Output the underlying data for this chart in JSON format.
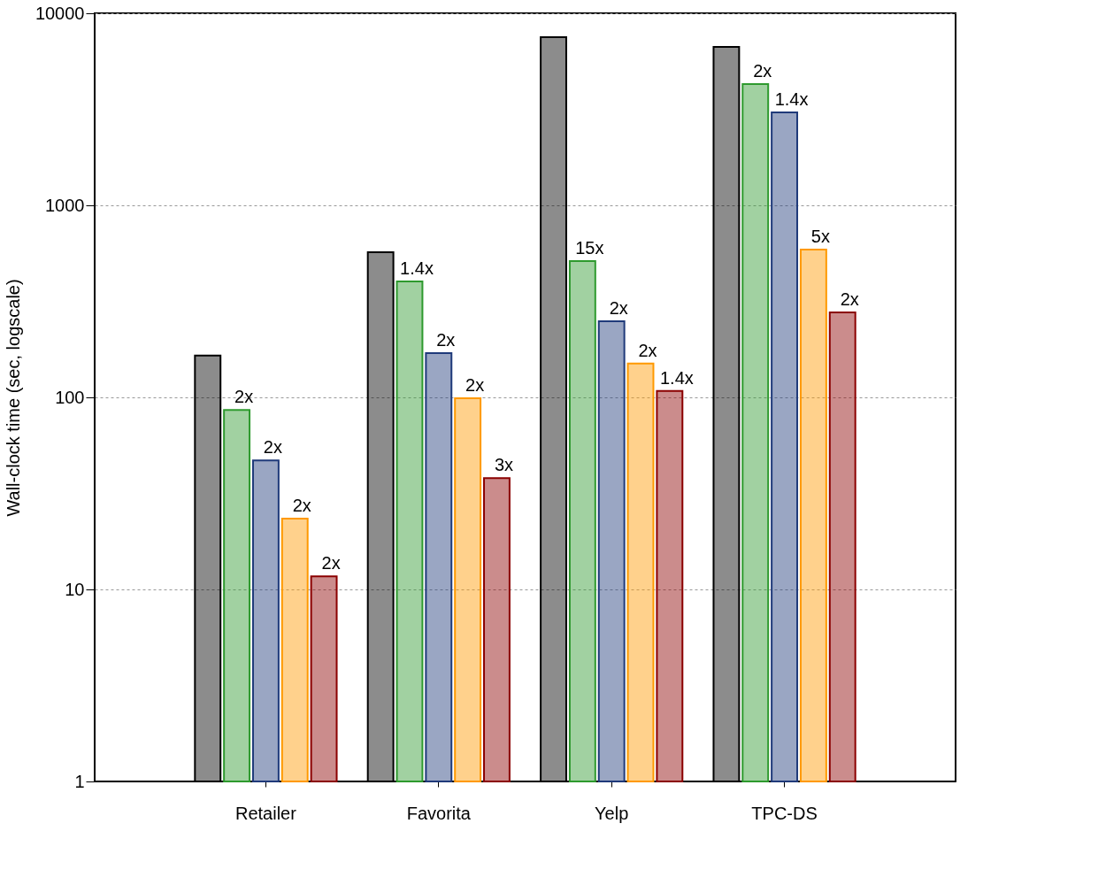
{
  "chart_data": {
    "type": "bar",
    "ylabel": "Wall-clock time (sec, logscale)",
    "categories": [
      "Retailer",
      "Favorita",
      "Yelp",
      "TPC-DS"
    ],
    "series": [
      {
        "color": "#000000",
        "values": [
          165,
          570,
          7510,
          6680
        ]
      },
      {
        "color": "#2e9a2e",
        "values": [
          86,
          402,
          512,
          4280
        ]
      },
      {
        "color": "#1f3a7a",
        "values": [
          47,
          170,
          249,
          3050
        ]
      },
      {
        "color": "#ff9900",
        "values": [
          23.4,
          99,
          150,
          589
        ]
      },
      {
        "color": "#8b0000",
        "values": [
          11.7,
          38,
          108,
          277
        ]
      }
    ],
    "annotations": [
      "2x",
      "2x",
      "2x",
      "2x",
      "1.4x",
      "2x",
      "2x",
      "3x",
      "15x",
      "2x",
      "2x",
      "1.4x",
      "2x",
      "1.4x",
      "5x",
      "2x"
    ],
    "log": true,
    "ylim": [
      1,
      10000
    ],
    "yticks": [
      1,
      10,
      100,
      1000,
      10000
    ],
    "grid": "y",
    "legend": false
  }
}
